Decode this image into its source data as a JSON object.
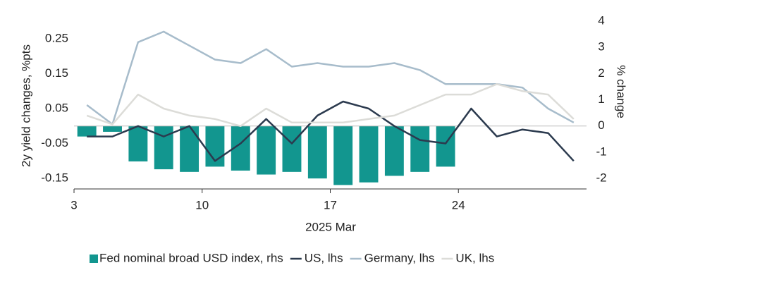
{
  "chart_data": {
    "type": "combo",
    "y_label": "2y yield changes, %pts",
    "y2_label": "% change",
    "x_label": "2025 Mar",
    "categories": [
      "3",
      null,
      null,
      null,
      null,
      "10",
      null,
      null,
      null,
      null,
      "17",
      null,
      null,
      null,
      null,
      "24",
      null,
      null,
      null,
      null
    ],
    "ylim": [
      -0.18,
      0.3
    ],
    "yticks": [
      -0.15,
      -0.05,
      0.05,
      0.15,
      0.25
    ],
    "y2lim": [
      -2.4,
      4
    ],
    "y2ticks": [
      -2,
      -1,
      0,
      1,
      2,
      3,
      4
    ],
    "series": [
      {
        "name": "Fed nominal broad USD index, rhs",
        "type": "bar",
        "axis": "y2",
        "color": "#12968f",
        "values": [
          -0.4,
          -0.22,
          -1.35,
          -1.65,
          -1.75,
          -1.55,
          -1.7,
          -1.85,
          -1.75,
          -2.0,
          -2.25,
          -2.15,
          -1.9,
          -1.75,
          -1.55,
          null,
          null,
          null,
          null,
          null
        ]
      },
      {
        "name": "US, lhs",
        "type": "line",
        "color": "#2b3a4e",
        "values": [
          -0.03,
          -0.03,
          0.0,
          -0.03,
          0.0,
          -0.1,
          -0.05,
          0.02,
          -0.05,
          0.03,
          0.07,
          0.05,
          0.0,
          -0.04,
          -0.05,
          0.05,
          -0.03,
          -0.01,
          -0.02,
          -0.1
        ]
      },
      {
        "name": "Germany, lhs",
        "type": "line",
        "color": "#a7bccb",
        "values": [
          0.06,
          0.005,
          0.24,
          0.27,
          0.23,
          0.19,
          0.18,
          0.22,
          0.17,
          0.18,
          0.17,
          0.17,
          0.18,
          0.16,
          0.12,
          0.12,
          0.12,
          0.11,
          0.05,
          0.01
        ]
      },
      {
        "name": "UK, lhs",
        "type": "line",
        "color": "#dcdcd8",
        "values": [
          0.03,
          0.005,
          0.09,
          0.05,
          0.03,
          0.02,
          0.0,
          0.05,
          0.01,
          0.01,
          0.01,
          0.02,
          0.03,
          0.06,
          0.09,
          0.09,
          0.12,
          0.1,
          0.09,
          0.02
        ]
      }
    ]
  }
}
